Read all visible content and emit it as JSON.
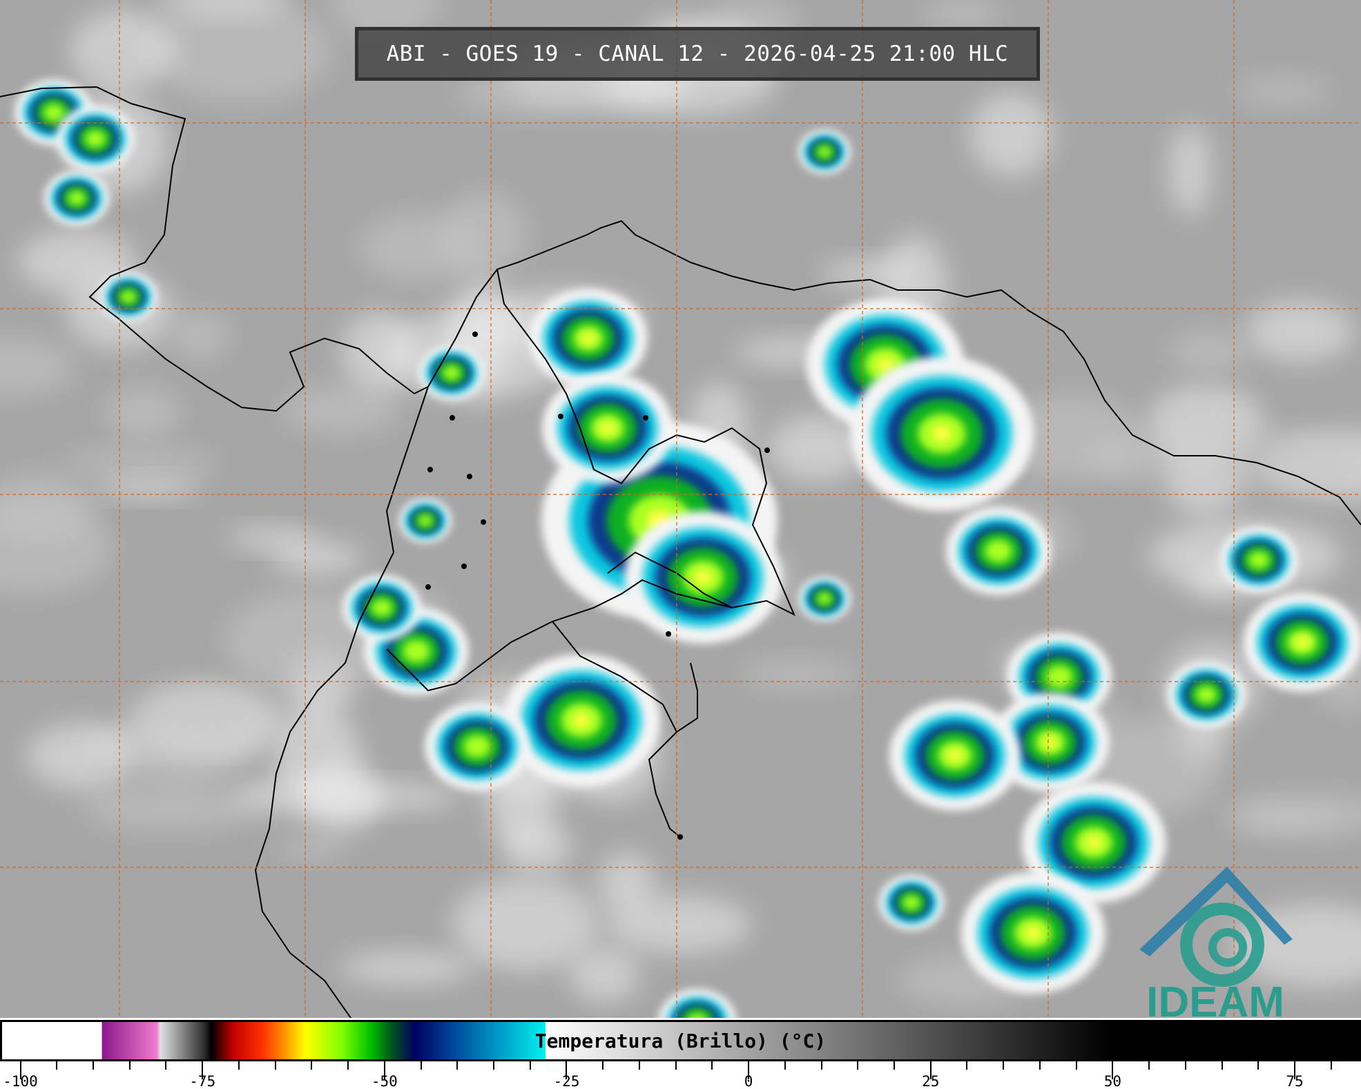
{
  "title": "ABI - GOES 19 - CANAL 12 - 2026-04-25 21:00 HLC",
  "colorbar": {
    "label": "Temperatura (Brillo) (°C)",
    "range": [
      -102.8,
      84.1
    ],
    "tick_labels": [
      "-100",
      "-75",
      "-50",
      "-25",
      "0",
      "25",
      "50",
      "75"
    ],
    "tick_values": [
      -100,
      -75,
      -50,
      -25,
      0,
      25,
      50,
      75
    ],
    "minor_step": 5,
    "stops": [
      {
        "v": -102.8,
        "c": "#ffffff"
      },
      {
        "v": -89.1,
        "c": "#ffffff"
      },
      {
        "v": -89,
        "c": "#8a1a8a"
      },
      {
        "v": -81.5,
        "c": "#f07ad0"
      },
      {
        "v": -81,
        "c": "#e0e0e0"
      },
      {
        "v": -75,
        "c": "#303030"
      },
      {
        "v": -74,
        "c": "#000000"
      },
      {
        "v": -71,
        "c": "#c00000"
      },
      {
        "v": -67,
        "c": "#ff3000"
      },
      {
        "v": -64,
        "c": "#ff9000"
      },
      {
        "v": -61,
        "c": "#ffff00"
      },
      {
        "v": -56,
        "c": "#80ff00"
      },
      {
        "v": -52,
        "c": "#00c000"
      },
      {
        "v": -49,
        "c": "#005020"
      },
      {
        "v": -46,
        "c": "#000060"
      },
      {
        "v": -40,
        "c": "#0050a0"
      },
      {
        "v": -28,
        "c": "#00f0f0"
      },
      {
        "v": -27.9,
        "c": "#ffffff"
      },
      {
        "v": 50,
        "c": "#000000"
      },
      {
        "v": 84.1,
        "c": "#000000"
      }
    ]
  },
  "logo": {
    "text": "IDEAM",
    "color": "#2a9d8f"
  },
  "colors": {
    "grid": "#d2691e",
    "coast": "#000000"
  }
}
